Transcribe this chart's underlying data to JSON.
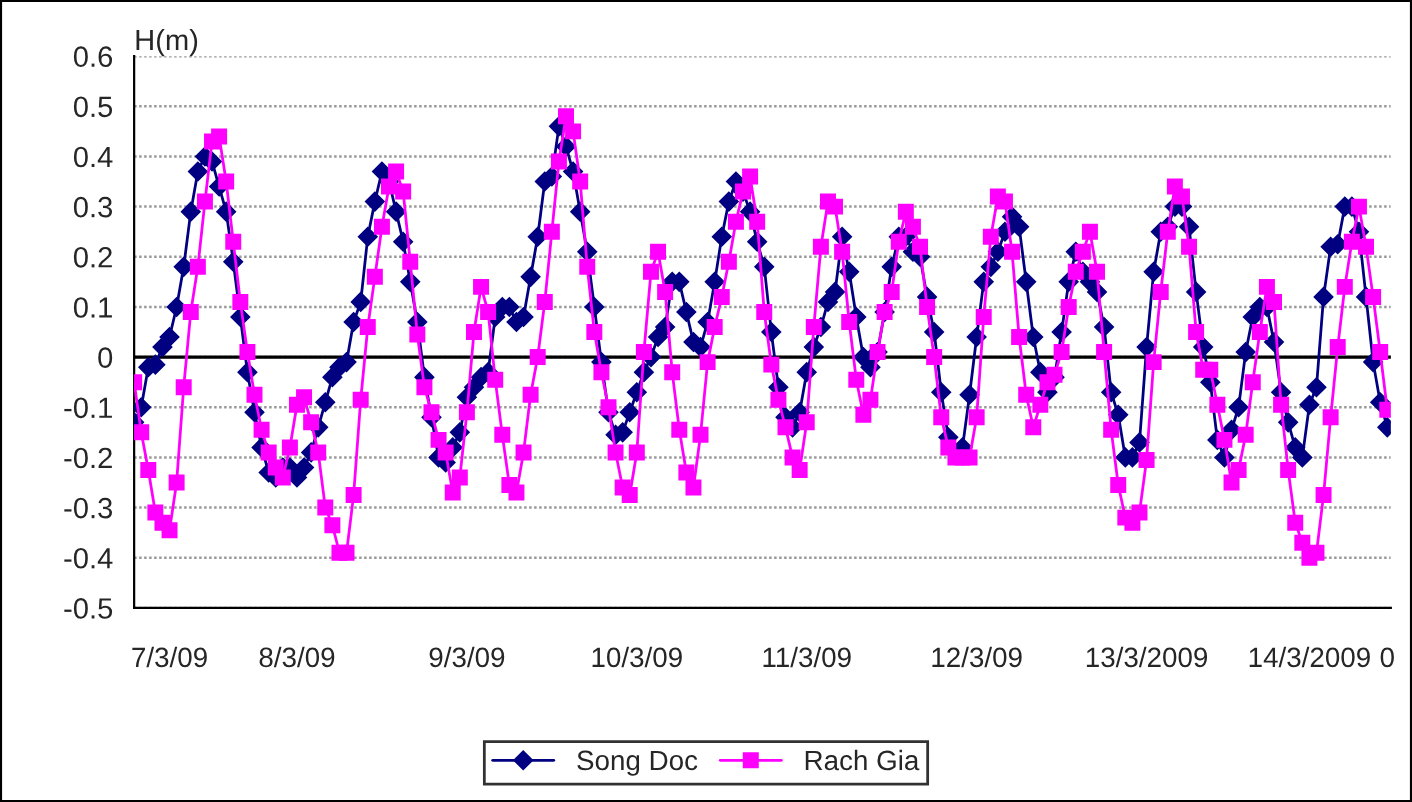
{
  "chart_data": {
    "type": "line",
    "ylabel": "H(m)",
    "categories": [
      null,
      null,
      null,
      null,
      null,
      "7/3/09",
      null,
      null,
      null,
      null,
      null,
      null,
      null,
      null,
      null,
      null,
      null,
      null,
      null,
      null,
      null,
      null,
      null,
      "8/3/09",
      null,
      null,
      null,
      null,
      null,
      null,
      null,
      null,
      null,
      null,
      null,
      null,
      null,
      null,
      null,
      null,
      null,
      null,
      null,
      null,
      null,
      null,
      null,
      "9/3/09",
      null,
      null,
      null,
      null,
      null,
      null,
      null,
      null,
      null,
      null,
      null,
      null,
      null,
      null,
      null,
      null,
      null,
      null,
      null,
      null,
      null,
      null,
      null,
      "10/3/09",
      null,
      null,
      null,
      null,
      null,
      null,
      null,
      null,
      null,
      null,
      null,
      null,
      null,
      null,
      null,
      null,
      null,
      null,
      null,
      null,
      null,
      null,
      null,
      "11/3/09",
      null,
      null,
      null,
      null,
      null,
      null,
      null,
      null,
      null,
      null,
      null,
      null,
      null,
      null,
      null,
      null,
      null,
      null,
      null,
      null,
      null,
      null,
      null,
      "12/3/09",
      null,
      null,
      null,
      null,
      null,
      null,
      null,
      null,
      null,
      null,
      null,
      null,
      null,
      null,
      null,
      null,
      null,
      null,
      null,
      null,
      null,
      null,
      null,
      "13/3/2009",
      null,
      null,
      null,
      null,
      null,
      null,
      null,
      null,
      null,
      null,
      null,
      null,
      null,
      null,
      null,
      null,
      null,
      null,
      null,
      null,
      null,
      null,
      "14/3/2009",
      null,
      null,
      null,
      null,
      null,
      null,
      null,
      null,
      null,
      null,
      "0"
    ],
    "series": [
      {
        "name": "Song Doc",
        "color": "#000080",
        "marker": "diamond",
        "values": [
          -0.13,
          -0.1,
          -0.02,
          -0.015,
          0.02,
          0.04,
          0.1,
          0.18,
          0.29,
          0.37,
          0.4,
          0.39,
          0.34,
          0.29,
          0.19,
          0.08,
          -0.03,
          -0.11,
          -0.18,
          -0.23,
          -0.24,
          -0.22,
          -0.22,
          -0.24,
          -0.22,
          -0.19,
          -0.14,
          -0.09,
          -0.04,
          -0.02,
          -0.01,
          0.07,
          0.11,
          0.24,
          0.31,
          0.37,
          0.35,
          0.29,
          0.23,
          0.15,
          0.07,
          -0.04,
          -0.12,
          -0.2,
          -0.21,
          -0.18,
          -0.15,
          -0.08,
          -0.06,
          -0.04,
          -0.03,
          0.08,
          0.1,
          0.1,
          0.07,
          0.08,
          0.16,
          0.24,
          0.35,
          0.36,
          0.46,
          0.42,
          0.37,
          0.29,
          0.21,
          0.1,
          -0.01,
          -0.11,
          -0.155,
          -0.15,
          -0.11,
          -0.07,
          -0.03,
          0.0,
          0.04,
          0.06,
          0.15,
          0.15,
          0.09,
          0.03,
          0.02,
          0.07,
          0.15,
          0.24,
          0.31,
          0.35,
          0.33,
          0.29,
          0.23,
          0.18,
          0.05,
          -0.06,
          -0.12,
          -0.14,
          -0.11,
          -0.03,
          0.02,
          0.06,
          0.11,
          0.13,
          0.24,
          0.17,
          0.08,
          0.0,
          -0.02,
          0.01,
          0.09,
          0.18,
          0.24,
          0.24,
          0.21,
          0.2,
          0.12,
          0.05,
          -0.07,
          -0.16,
          -0.19,
          -0.18,
          -0.075,
          0.04,
          0.15,
          0.18,
          0.21,
          0.25,
          0.28,
          0.26,
          0.15,
          0.04,
          -0.03,
          -0.07,
          -0.04,
          0.05,
          0.15,
          0.21,
          0.17,
          0.15,
          0.13,
          0.06,
          -0.07,
          -0.115,
          -0.2,
          -0.2,
          -0.17,
          0.02,
          0.17,
          0.25,
          0.26,
          0.3,
          0.3,
          0.26,
          0.13,
          0.02,
          -0.05,
          -0.165,
          -0.2,
          -0.145,
          -0.1,
          0.01,
          0.08,
          0.1,
          0.1,
          0.03,
          -0.07,
          -0.13,
          -0.18,
          -0.2,
          -0.095,
          -0.06,
          0.12,
          0.22,
          0.225,
          0.3,
          0.3,
          0.25,
          0.12,
          -0.01,
          -0.09,
          -0.14
        ]
      },
      {
        "name": "Rach Gia",
        "color": "#ff00ff",
        "marker": "square",
        "values": [
          -0.05,
          -0.15,
          -0.225,
          -0.31,
          -0.33,
          -0.345,
          -0.25,
          -0.06,
          0.09,
          0.18,
          0.31,
          0.43,
          0.44,
          0.35,
          0.23,
          0.11,
          0.01,
          -0.075,
          -0.145,
          -0.19,
          -0.22,
          -0.24,
          -0.18,
          -0.095,
          -0.08,
          -0.13,
          -0.19,
          -0.3,
          -0.335,
          -0.39,
          -0.39,
          -0.275,
          -0.085,
          0.06,
          0.16,
          0.26,
          0.34,
          0.37,
          0.33,
          0.19,
          0.045,
          -0.06,
          -0.11,
          -0.165,
          -0.19,
          -0.27,
          -0.24,
          -0.11,
          0.05,
          0.14,
          0.09,
          -0.045,
          -0.155,
          -0.255,
          -0.27,
          -0.19,
          -0.075,
          0.0,
          0.11,
          0.25,
          0.39,
          0.48,
          0.45,
          0.35,
          0.18,
          0.05,
          -0.03,
          -0.1,
          -0.19,
          -0.26,
          -0.275,
          -0.19,
          0.01,
          0.17,
          0.21,
          0.13,
          -0.03,
          -0.145,
          -0.23,
          -0.26,
          -0.155,
          -0.01,
          0.06,
          0.12,
          0.19,
          0.27,
          0.33,
          0.36,
          0.27,
          0.09,
          -0.015,
          -0.085,
          -0.14,
          -0.2,
          -0.225,
          -0.13,
          0.06,
          0.22,
          0.31,
          0.3,
          0.21,
          0.07,
          -0.045,
          -0.115,
          -0.085,
          0.01,
          0.09,
          0.13,
          0.23,
          0.29,
          0.26,
          0.22,
          0.1,
          0.0,
          -0.12,
          -0.18,
          -0.2,
          -0.2,
          -0.2,
          -0.12,
          0.08,
          0.24,
          0.32,
          0.31,
          0.21,
          0.04,
          -0.075,
          -0.14,
          -0.095,
          -0.05,
          -0.035,
          0.01,
          0.1,
          0.17,
          0.21,
          0.25,
          0.17,
          0.01,
          -0.145,
          -0.255,
          -0.32,
          -0.33,
          -0.31,
          -0.205,
          -0.01,
          0.13,
          0.25,
          0.34,
          0.32,
          0.22,
          0.05,
          -0.025,
          -0.025,
          -0.095,
          -0.165,
          -0.25,
          -0.225,
          -0.155,
          -0.05,
          0.05,
          0.14,
          0.11,
          -0.095,
          -0.225,
          -0.33,
          -0.37,
          -0.4,
          -0.39,
          -0.275,
          -0.12,
          0.02,
          0.14,
          0.23,
          0.3,
          0.22,
          0.12,
          0.01,
          -0.105
        ]
      }
    ],
    "ylim": [
      -0.5,
      0.6
    ],
    "yticks": [
      -0.5,
      -0.4,
      -0.3,
      -0.2,
      -0.1,
      0,
      0.1,
      0.2,
      0.3,
      0.4,
      0.5,
      0.6
    ],
    "ref_lines": [
      {
        "axis": "y",
        "value": 0,
        "color": "#000000"
      }
    ],
    "grid": "y",
    "legend": "bottom",
    "line_style": "solid"
  }
}
